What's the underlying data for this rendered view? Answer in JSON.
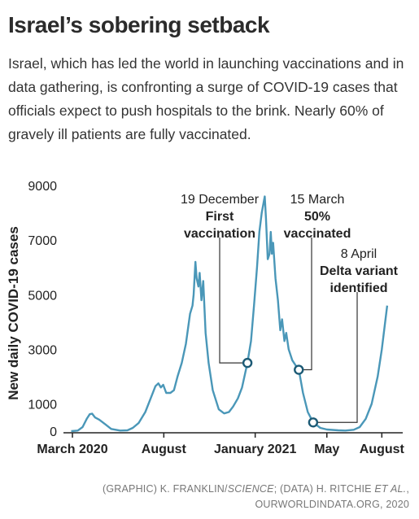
{
  "title": "Israel’s sobering setback",
  "subtitle": "Israel, which has led the world in launching vaccinations and in data gathering, is confronting a surge of COVID-19 cases that officials expect to push hospitals to the brink. Nearly 60% of gravely ill patients are fully vaccinated.",
  "credit": {
    "graphic_prefix": "(GRAPHIC) K. FRANKLIN/",
    "graphic_pub": "SCIENCE",
    "data_prefix": "; (DATA) H. RITCHIE ",
    "data_etal": "ET AL.",
    "line2": "OURWORLDINDATA.ORG, 2020"
  },
  "colors": {
    "line": "#4a97b8",
    "marker": "#1c5a75",
    "text": "#222222"
  },
  "chart_data": {
    "type": "line",
    "ylabel": "New daily COVID-19 cases",
    "xlabel": "",
    "ylim": [
      0,
      9300
    ],
    "yticks": [
      0,
      1000,
      3000,
      5000,
      7000,
      9000
    ],
    "xticks": [
      {
        "label": "March 2020",
        "date": "2020-03-01"
      },
      {
        "label": "August",
        "date": "2020-08-01"
      },
      {
        "label": "January 2021",
        "date": "2021-01-01"
      },
      {
        "label": "May",
        "date": "2021-05-01"
      },
      {
        "label": "August",
        "date": "2021-08-01"
      }
    ],
    "series": [
      {
        "points": [
          [
            "2020-02-28",
            0
          ],
          [
            "2020-03-10",
            20
          ],
          [
            "2020-03-18",
            150
          ],
          [
            "2020-03-25",
            450
          ],
          [
            "2020-03-30",
            620
          ],
          [
            "2020-04-03",
            640
          ],
          [
            "2020-04-08",
            500
          ],
          [
            "2020-04-15",
            420
          ],
          [
            "2020-04-25",
            250
          ],
          [
            "2020-05-05",
            80
          ],
          [
            "2020-05-20",
            20
          ],
          [
            "2020-06-01",
            30
          ],
          [
            "2020-06-10",
            120
          ],
          [
            "2020-06-20",
            300
          ],
          [
            "2020-07-01",
            700
          ],
          [
            "2020-07-10",
            1200
          ],
          [
            "2020-07-18",
            1650
          ],
          [
            "2020-07-23",
            1750
          ],
          [
            "2020-07-27",
            1600
          ],
          [
            "2020-07-31",
            1700
          ],
          [
            "2020-08-05",
            1400
          ],
          [
            "2020-08-12",
            1400
          ],
          [
            "2020-08-18",
            1500
          ],
          [
            "2020-08-24",
            2000
          ],
          [
            "2020-08-31",
            2500
          ],
          [
            "2020-09-07",
            3200
          ],
          [
            "2020-09-14",
            4300
          ],
          [
            "2020-09-18",
            4600
          ],
          [
            "2020-09-20",
            5000
          ],
          [
            "2020-09-23",
            6200
          ],
          [
            "2020-09-25",
            5600
          ],
          [
            "2020-09-28",
            5300
          ],
          [
            "2020-09-30",
            5800
          ],
          [
            "2020-10-03",
            4800
          ],
          [
            "2020-10-06",
            5500
          ],
          [
            "2020-10-10",
            3600
          ],
          [
            "2020-10-15",
            2500
          ],
          [
            "2020-10-22",
            1500
          ],
          [
            "2020-11-01",
            800
          ],
          [
            "2020-11-10",
            650
          ],
          [
            "2020-11-18",
            700
          ],
          [
            "2020-11-25",
            900
          ],
          [
            "2020-12-03",
            1200
          ],
          [
            "2020-12-10",
            1600
          ],
          [
            "2020-12-19",
            2500
          ],
          [
            "2020-12-25",
            3300
          ],
          [
            "2020-12-30",
            4600
          ],
          [
            "2021-01-04",
            6000
          ],
          [
            "2021-01-08",
            7300
          ],
          [
            "2021-01-12",
            8000
          ],
          [
            "2021-01-17",
            8600
          ],
          [
            "2021-01-19",
            7800
          ],
          [
            "2021-01-22",
            6300
          ],
          [
            "2021-01-25",
            6500
          ],
          [
            "2021-01-27",
            7300
          ],
          [
            "2021-01-29",
            6500
          ],
          [
            "2021-01-31",
            6900
          ],
          [
            "2021-02-04",
            5600
          ],
          [
            "2021-02-08",
            4800
          ],
          [
            "2021-02-12",
            3700
          ],
          [
            "2021-02-15",
            4100
          ],
          [
            "2021-02-19",
            3300
          ],
          [
            "2021-02-22",
            3600
          ],
          [
            "2021-02-26",
            3000
          ],
          [
            "2021-03-04",
            2600
          ],
          [
            "2021-03-10",
            2400
          ],
          [
            "2021-03-15",
            2250
          ],
          [
            "2021-03-22",
            1400
          ],
          [
            "2021-03-30",
            700
          ],
          [
            "2021-04-08",
            320
          ],
          [
            "2021-04-20",
            120
          ],
          [
            "2021-05-01",
            60
          ],
          [
            "2021-05-20",
            30
          ],
          [
            "2021-06-01",
            20
          ],
          [
            "2021-06-15",
            50
          ],
          [
            "2021-06-25",
            150
          ],
          [
            "2021-07-05",
            450
          ],
          [
            "2021-07-15",
            1000
          ],
          [
            "2021-07-25",
            2000
          ],
          [
            "2021-08-01",
            3000
          ],
          [
            "2021-08-06",
            3900
          ],
          [
            "2021-08-10",
            4600
          ]
        ]
      }
    ],
    "annotations": [
      {
        "date": "2020-12-19",
        "value": 2500,
        "line1": "19 December",
        "line2": "First",
        "line3": "vaccination"
      },
      {
        "date": "2021-03-15",
        "value": 2250,
        "line1": "15 March",
        "line2": "50%",
        "line3": "vaccinated"
      },
      {
        "date": "2021-04-08",
        "value": 320,
        "line1": "8 April",
        "line2": "Delta variant",
        "line3": "identified"
      }
    ],
    "grid": false,
    "legend": "none"
  }
}
